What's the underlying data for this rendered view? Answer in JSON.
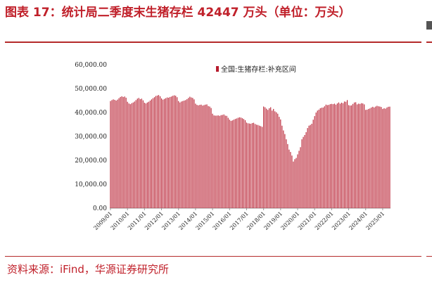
{
  "title": "图表 17：统计局二季度末生猪存栏 42447 万头（单位：万头）",
  "source": "资料来源：iFind，华源证券研究所",
  "colors": {
    "bar": "#b71c2e",
    "accent": "#c0202a"
  },
  "chart_data": {
    "type": "bar",
    "legend": {
      "label": "全国:生猪存栏:补充区间",
      "placement": "top-center"
    },
    "ylim": [
      0,
      60000
    ],
    "yticks": [
      "0.00",
      "10,000.00",
      "20,000.00",
      "30,000.00",
      "40,000.00",
      "50,000.00",
      "60,000.00"
    ],
    "xticks": [
      "2009/01",
      "2010/01",
      "2011/01",
      "2012/01",
      "2013/01",
      "2014/01",
      "2015/01",
      "2016/01",
      "2017/01",
      "2018/01",
      "2019/01",
      "2020/01",
      "2021/01",
      "2022/01",
      "2023/01",
      "2024/01",
      "2025/01"
    ],
    "start": "2009/01",
    "end": "2025/06",
    "values": [
      44800,
      45200,
      45500,
      45300,
      45000,
      45400,
      46000,
      46500,
      46800,
      46500,
      46700,
      46200,
      44500,
      43800,
      43500,
      43900,
      44200,
      44600,
      45200,
      45800,
      46100,
      45600,
      45800,
      45100,
      44100,
      43800,
      44200,
      44500,
      45000,
      45500,
      46000,
      46400,
      46900,
      47100,
      47300,
      46800,
      45900,
      45400,
      45700,
      46000,
      46300,
      46200,
      46500,
      46700,
      47000,
      47200,
      47000,
      46400,
      44800,
      44200,
      44600,
      44800,
      45000,
      45200,
      45600,
      46100,
      46600,
      46300,
      46100,
      45500,
      43700,
      43200,
      43000,
      43200,
      43300,
      42900,
      43100,
      43300,
      43400,
      42700,
      42500,
      41900,
      39500,
      38800,
      38700,
      38700,
      38800,
      38600,
      38900,
      39000,
      39200,
      38700,
      38600,
      37800,
      37000,
      36500,
      36700,
      37000,
      37300,
      37500,
      37800,
      38000,
      37900,
      37600,
      37300,
      36800,
      35800,
      35500,
      35400,
      35300,
      35600,
      35700,
      35200,
      34900,
      34800,
      34500,
      34300,
      34000,
      42500,
      42200,
      41600,
      41100,
      41800,
      42200,
      40800,
      41500,
      40500,
      40100,
      39500,
      38200,
      37100,
      34500,
      32500,
      31000,
      28800,
      26800,
      24500,
      23500,
      22000,
      19500,
      20500,
      21000,
      22500,
      24000,
      25500,
      28800,
      29800,
      30600,
      31800,
      33500,
      34500,
      34800,
      35300,
      37000,
      38500,
      40000,
      40800,
      41200,
      41800,
      42000,
      42100,
      42600,
      43300,
      43100,
      43200,
      43500,
      43600,
      43500,
      43700,
      43300,
      43800,
      44200,
      43700,
      44100,
      43900,
      44600,
      44500,
      45200,
      43100,
      42900,
      43000,
      43600,
      44200,
      44300,
      43400,
      43700,
      43600,
      43900,
      43800,
      43400,
      41100,
      41200,
      41500,
      41700,
      42100,
      42400,
      42100,
      42500,
      42800,
      42600,
      42500,
      42300,
      41500,
      41800,
      41600,
      42100,
      42400,
      42450
    ]
  }
}
